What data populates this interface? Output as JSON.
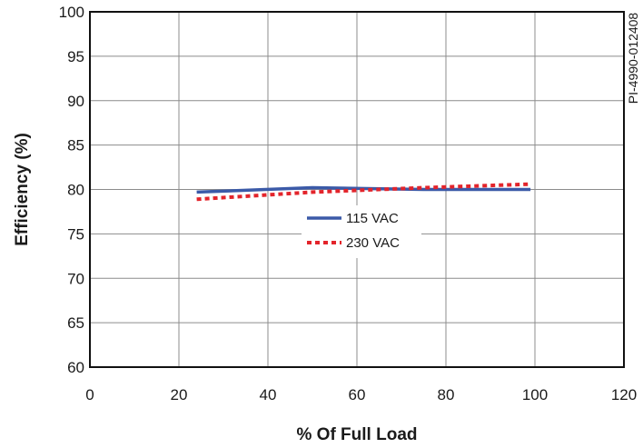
{
  "chart_data": {
    "type": "line",
    "xlabel": "% Of Full Load",
    "ylabel": "Efficiency (%)",
    "figure_id": "PI-4990-012408",
    "xlim": [
      0,
      120
    ],
    "ylim": [
      60,
      100
    ],
    "x_ticks": [
      0,
      20,
      40,
      60,
      80,
      100,
      120
    ],
    "y_ticks": [
      60,
      65,
      70,
      75,
      80,
      85,
      90,
      95,
      100
    ],
    "grid": true,
    "legend_position": "center",
    "series": [
      {
        "name": "115 VAC",
        "color": "#3b5aa8",
        "style": "solid",
        "x": [
          24,
          50,
          75,
          99
        ],
        "y": [
          79.7,
          80.2,
          80.0,
          80.0
        ]
      },
      {
        "name": "230 VAC",
        "color": "#e3242b",
        "style": "dotted",
        "x": [
          24,
          50,
          75,
          99
        ],
        "y": [
          78.9,
          79.7,
          80.2,
          80.6
        ]
      }
    ]
  }
}
